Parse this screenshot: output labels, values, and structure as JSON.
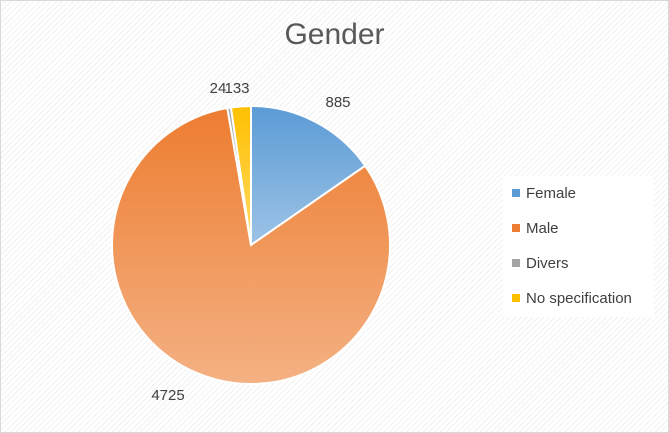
{
  "chart_data": {
    "type": "pie",
    "title": "Gender",
    "categories": [
      "Female",
      "Male",
      "Divers",
      "No specification"
    ],
    "values": [
      885,
      4725,
      24,
      133
    ],
    "value_labels": [
      "885",
      "4725",
      "24",
      "133"
    ],
    "colors": [
      "#5b9bd5",
      "#ed7d31",
      "#a5a5a5",
      "#ffc000"
    ],
    "light_colors": [
      "#9dc3e6",
      "#f4b183",
      "#d0d0d0",
      "#ffd966"
    ],
    "legend_position": "right",
    "start_angle_deg": 0,
    "direction": "clockwise"
  }
}
